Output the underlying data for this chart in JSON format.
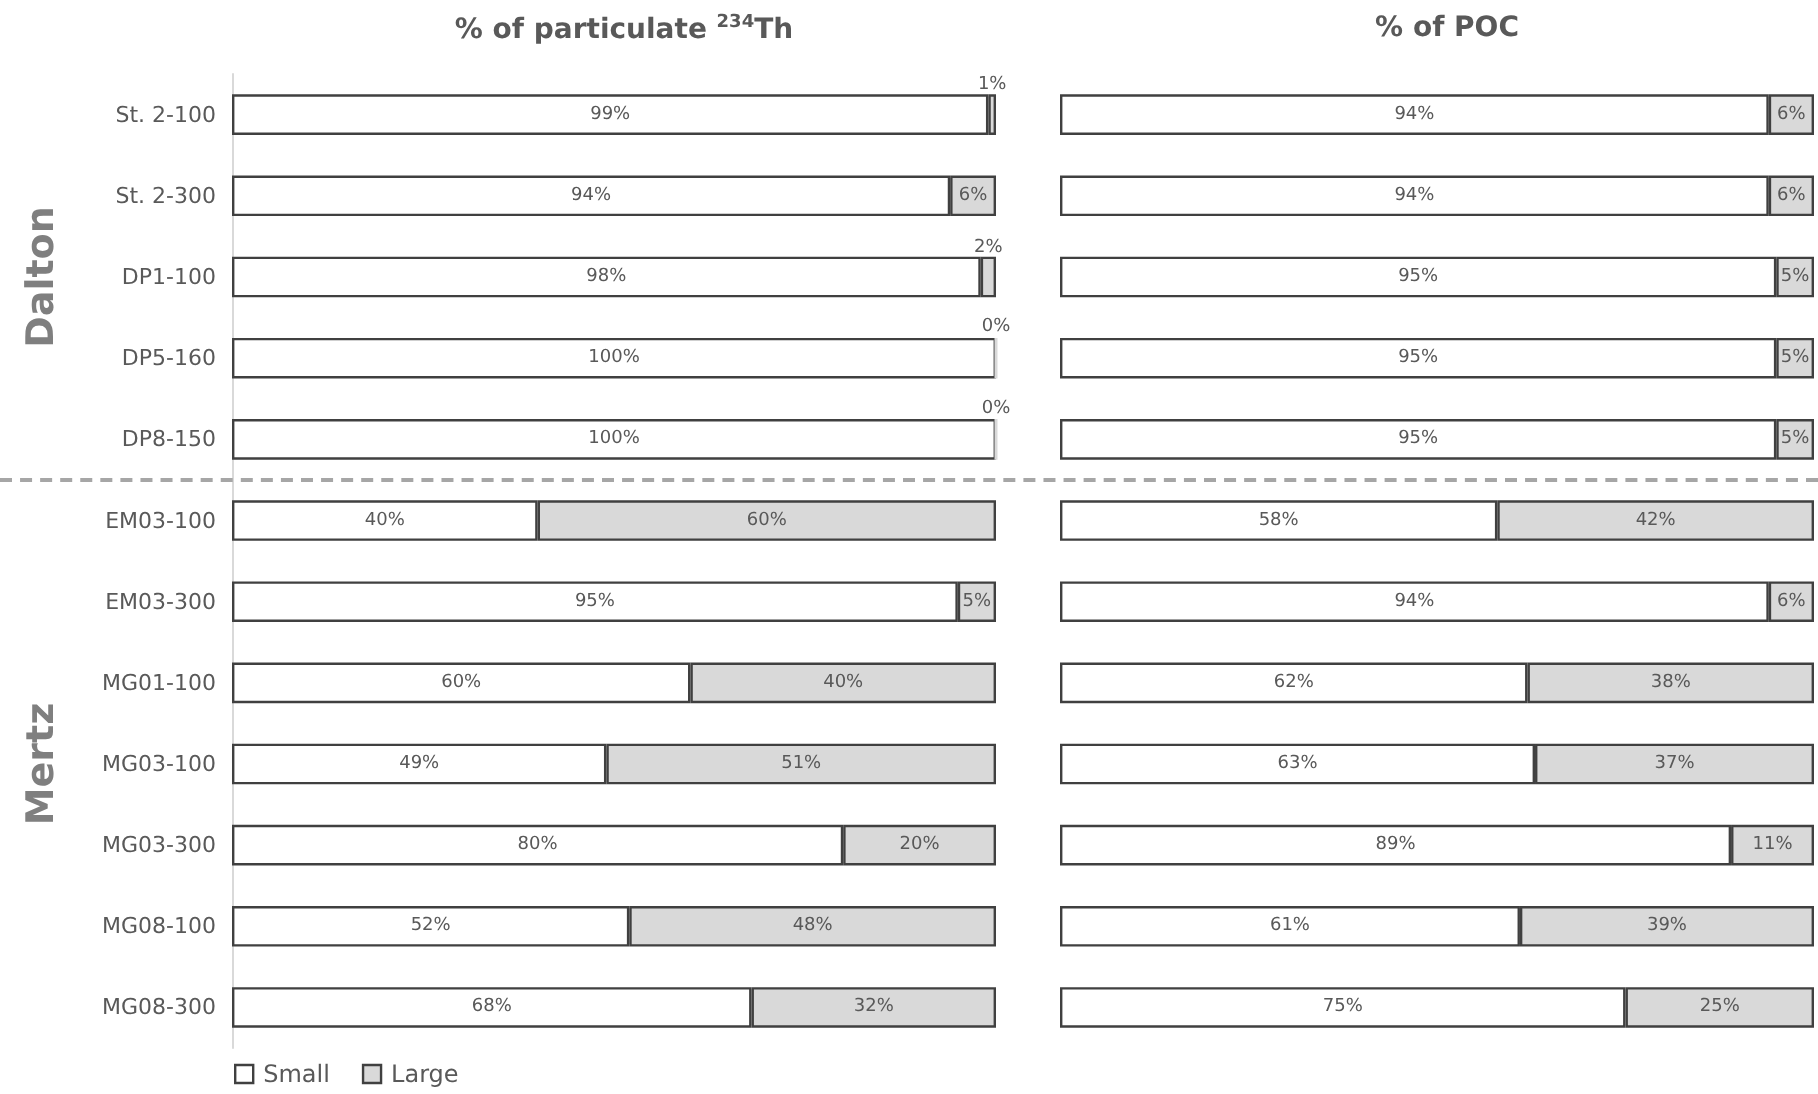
{
  "chart_data": [
    {
      "type": "bar",
      "orientation": "horizontal",
      "stacked": true,
      "title": "% of particulate $^{234}$Th",
      "ylabel": "Dalton",
      "categories": [
        "St. 2-100",
        "St. 2-300",
        "DP1-100",
        "DP5-160",
        "DP8-150"
      ],
      "series": [
        {
          "color": "#ffffff",
          "values": [
            99,
            94,
            98,
            100,
            100
          ],
          "value_labels": [
            "99%",
            "94%",
            "98%",
            "100%",
            "100%"
          ]
        },
        {
          "color": "#d9d9d9",
          "values": [
            1,
            6,
            2,
            0,
            0
          ],
          "value_labels": [
            "1%",
            "6%",
            "2%",
            "0%",
            "0%"
          ]
        }
      ],
      "xlim": [
        0,
        100
      ],
      "tick_labels": "y"
    },
    {
      "type": "bar",
      "orientation": "horizontal",
      "stacked": true,
      "title": "% of POC",
      "categories": [
        null,
        null,
        null,
        null,
        null
      ],
      "series": [
        {
          "color": "#ffffff",
          "values": [
            94,
            94,
            95,
            95,
            95
          ],
          "value_labels": [
            "94%",
            "94%",
            "95%",
            "95%",
            "95%"
          ]
        },
        {
          "color": "#d9d9d9",
          "values": [
            6,
            6,
            5,
            5,
            5
          ],
          "value_labels": [
            "6%",
            "6%",
            "5%",
            "5%",
            "5%"
          ]
        }
      ],
      "xlim": [
        0,
        100
      ],
      "tick_labels": false
    },
    {
      "type": "bar",
      "orientation": "horizontal",
      "stacked": true,
      "ylabel": "Mertz",
      "categories": [
        "EM03-100",
        "EM03-300",
        "MG01-100",
        "MG03-100",
        "MG03-300",
        "MG08-100",
        "MG08-300"
      ],
      "series": [
        {
          "name": "Small",
          "color": "#ffffff",
          "values": [
            40,
            95,
            60,
            49,
            80,
            52,
            68
          ],
          "value_labels": [
            "40%",
            "95%",
            "60%",
            "49%",
            "80%",
            "52%",
            "68%"
          ]
        },
        {
          "name": "Large",
          "color": "#d9d9d9",
          "values": [
            60,
            5,
            40,
            51,
            20,
            48,
            32
          ],
          "value_labels": [
            "60%",
            "5%",
            "40%",
            "51%",
            "20%",
            "48%",
            "32%"
          ]
        }
      ],
      "xlim": [
        0,
        100
      ],
      "tick_labels": "y",
      "legend": "bottom left"
    },
    {
      "type": "bar",
      "orientation": "horizontal",
      "stacked": true,
      "categories": [
        null,
        null,
        null,
        null,
        null,
        null,
        null
      ],
      "series": [
        {
          "color": "#ffffff",
          "values": [
            58,
            94,
            62,
            63,
            89,
            61,
            75
          ],
          "value_labels": [
            "58%",
            "94%",
            "62%",
            "63%",
            "89%",
            "61%",
            "75%"
          ]
        },
        {
          "color": "#d9d9d9",
          "values": [
            42,
            6,
            38,
            37,
            11,
            39,
            25
          ],
          "value_labels": [
            "42%",
            "6%",
            "38%",
            "37%",
            "11%",
            "39%",
            "25%"
          ]
        }
      ],
      "xlim": [
        0,
        100
      ],
      "tick_labels": false
    }
  ]
}
